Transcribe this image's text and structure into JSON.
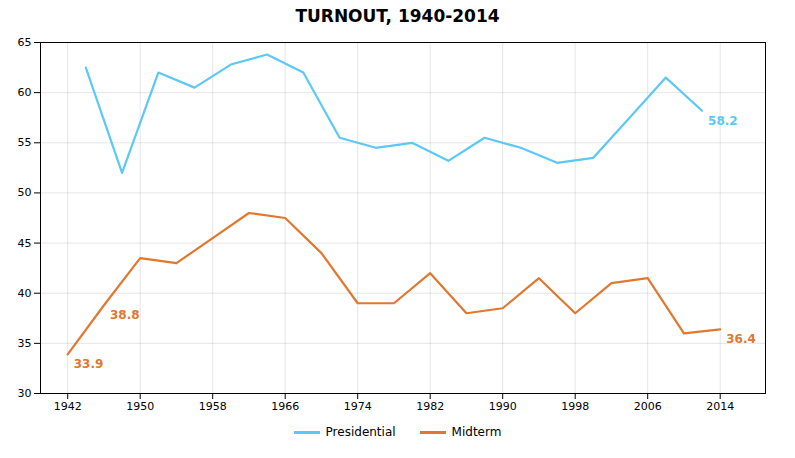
{
  "chart_data": {
    "type": "line",
    "title": "TURNOUT, 1940-2014",
    "series": [
      {
        "name": "Presidential",
        "color": "#5bc8f5",
        "x": [
          1944,
          1948,
          1952,
          1956,
          1960,
          1964,
          1968,
          1972,
          1976,
          1980,
          1984,
          1988,
          1992,
          1996,
          2000,
          2004,
          2008,
          2012
        ],
        "values": [
          62.5,
          52.0,
          62.0,
          60.5,
          62.8,
          63.8,
          62.0,
          55.5,
          54.5,
          55.0,
          53.2,
          55.5,
          54.5,
          53.0,
          53.5,
          57.5,
          61.5,
          58.2
        ]
      },
      {
        "name": "Midterm",
        "color": "#e07830",
        "x": [
          1942,
          1946,
          1950,
          1954,
          1958,
          1962,
          1966,
          1970,
          1974,
          1978,
          1982,
          1986,
          1990,
          1994,
          1998,
          2002,
          2006,
          2010,
          2014
        ],
        "values": [
          33.9,
          38.8,
          43.5,
          43.0,
          45.5,
          48.0,
          47.5,
          44.0,
          39.0,
          39.0,
          42.0,
          38.0,
          38.5,
          41.5,
          38.0,
          41.0,
          41.5,
          36.0,
          36.4
        ]
      }
    ],
    "annotations": [
      {
        "text": "33.9",
        "x": 1942,
        "y": 33.9,
        "color": "#e07830"
      },
      {
        "text": "38.8",
        "x": 1946,
        "y": 38.8,
        "color": "#e07830"
      },
      {
        "text": "58.2",
        "x": 2012,
        "y": 58.2,
        "color": "#5bc8f5"
      },
      {
        "text": "36.4",
        "x": 2014,
        "y": 36.4,
        "color": "#e07830"
      }
    ],
    "xlim": [
      1939,
      2019
    ],
    "xticks": [
      1942,
      1950,
      1958,
      1966,
      1974,
      1982,
      1990,
      1998,
      2006,
      2014
    ],
    "ylim": [
      30,
      65
    ],
    "yticks": [
      30,
      35,
      40,
      45,
      50,
      55,
      60,
      65
    ],
    "grid": true,
    "legend": "bottom"
  }
}
